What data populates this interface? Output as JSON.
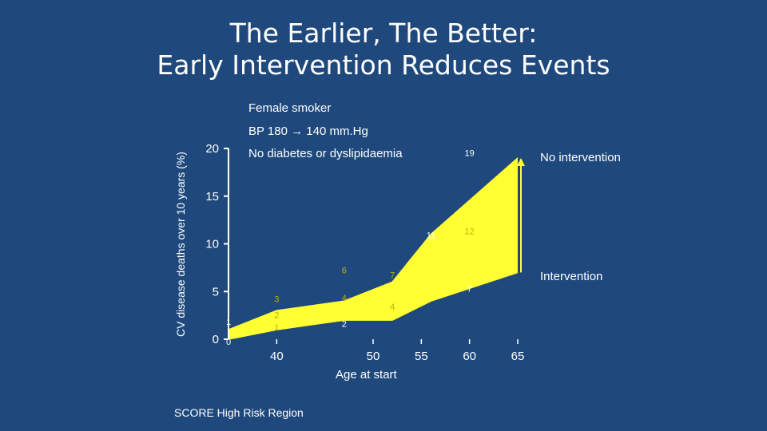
{
  "title": {
    "line1": "The Earlier, The Better:",
    "line2": "Early Intervention Reduces Events"
  },
  "annotations": {
    "profile": "Female smoker",
    "bp": "BP 180 → 140 mm.Hg",
    "diabetes": "No diabetes or dyslipidaemia",
    "no_intervention": "No intervention",
    "intervention": "Intervention"
  },
  "source": "SCORE High Risk Region",
  "colors": {
    "background": "#1f497d",
    "band_fill": "#ffff33",
    "text": "#ffffff",
    "inner_label": "#b8b400"
  },
  "chart_data": {
    "type": "area",
    "ylabel": "CV disease deaths over 10 years (%)",
    "xlabel": "Age at start",
    "xlim": [
      35,
      65
    ],
    "ylim": [
      0,
      20
    ],
    "x_ticks": [
      40,
      50,
      55,
      60,
      65
    ],
    "y_ticks": [
      0,
      5,
      10,
      15,
      20
    ],
    "series": [
      {
        "name": "No intervention",
        "x": [
          35,
          40,
          47,
          52,
          56,
          65
        ],
        "values": [
          1,
          3,
          4,
          6,
          11,
          19
        ]
      },
      {
        "name": "Intervention",
        "x": [
          35,
          40,
          47,
          52,
          56,
          65
        ],
        "values": [
          0,
          1,
          2,
          2,
          4,
          7
        ]
      }
    ],
    "data_labels": [
      {
        "x": 35,
        "y": 1.5,
        "text": "1",
        "style": "outer"
      },
      {
        "x": 35,
        "y": -0.6,
        "text": "0",
        "style": "outer"
      },
      {
        "x": 40,
        "y": 3.9,
        "text": "3",
        "style": "inner"
      },
      {
        "x": 40,
        "y": 2.2,
        "text": "2",
        "style": "inner"
      },
      {
        "x": 40,
        "y": 0.9,
        "text": "1",
        "style": "inner"
      },
      {
        "x": 47,
        "y": 6.9,
        "text": "6",
        "style": "inner"
      },
      {
        "x": 47,
        "y": 4.0,
        "text": "4",
        "style": "inner"
      },
      {
        "x": 47,
        "y": 1.3,
        "text": "2",
        "style": "outer"
      },
      {
        "x": 52,
        "y": 6.4,
        "text": "7",
        "style": "inner"
      },
      {
        "x": 52,
        "y": 3.1,
        "text": "4",
        "style": "inner"
      },
      {
        "x": 56,
        "y": 10.6,
        "text": "11",
        "style": "outer"
      },
      {
        "x": 60,
        "y": 11.0,
        "text": "12",
        "style": "inner"
      },
      {
        "x": 60,
        "y": 19.2,
        "text": "19",
        "style": "outer"
      },
      {
        "x": 60,
        "y": 5.0,
        "text": "7",
        "style": "outer"
      }
    ]
  }
}
